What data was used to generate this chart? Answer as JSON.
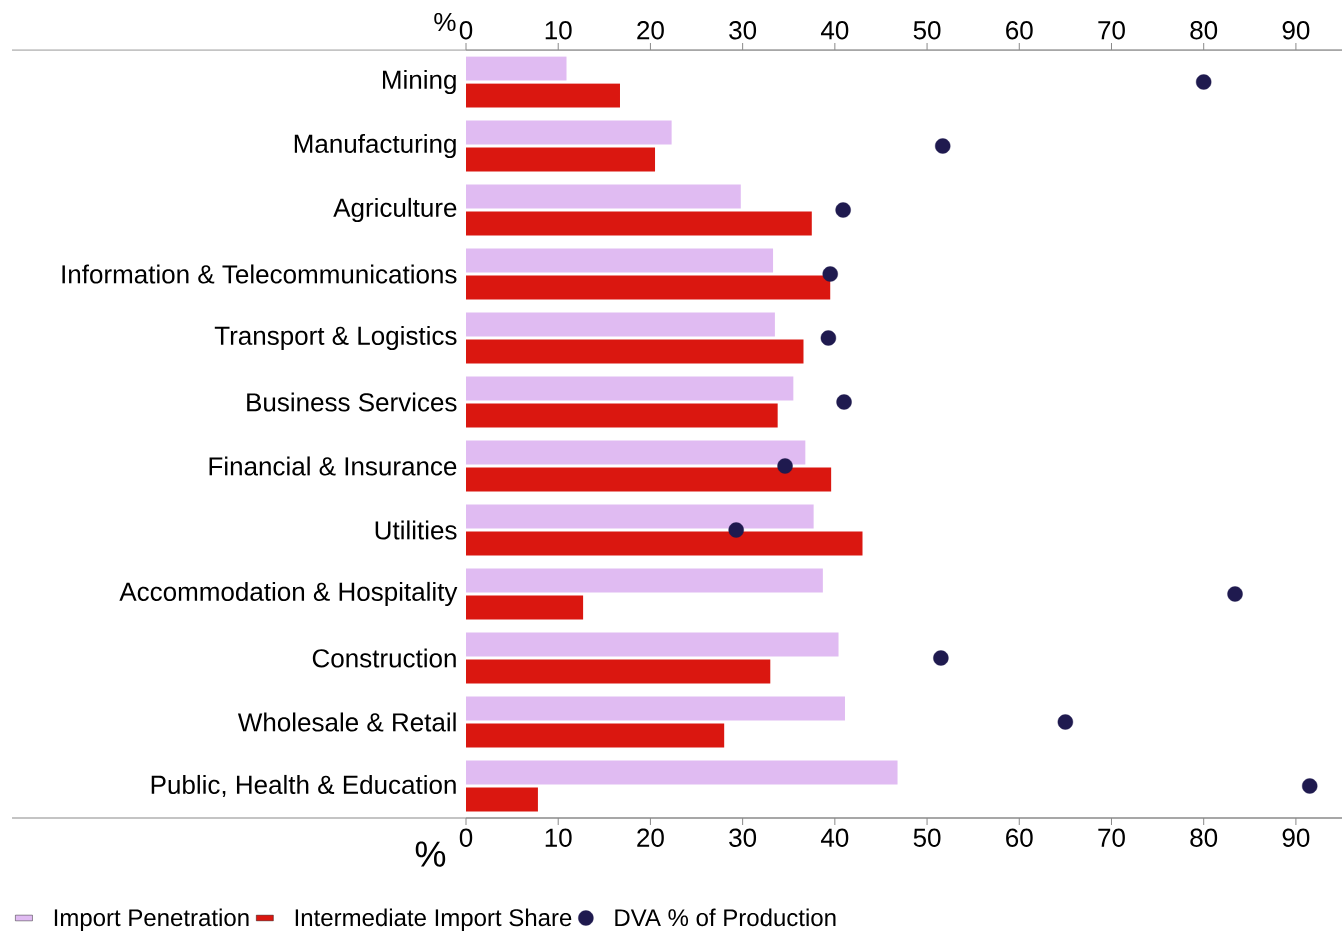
{
  "chart_data": {
    "type": "bar",
    "orientation": "horizontal",
    "categories": [
      "Mining",
      "Manufacturing",
      "Agriculture",
      "Information & Telecommunications",
      "Transport & Logistics",
      "Business Services",
      "Financial & Insurance",
      "Utilities",
      "Accommodation & Hospitality",
      "Construction",
      "Wholesale & Retail",
      "Public, Health & Education"
    ],
    "series": [
      {
        "name": "Import Penetration",
        "color": "#e0bbf2",
        "values": [
          10.9,
          22.3,
          29.8,
          33.3,
          33.5,
          35.5,
          36.8,
          37.7,
          38.7,
          40.4,
          41.1,
          46.8
        ]
      },
      {
        "name": "Intermediate Import Share",
        "color": "#da1710",
        "values": [
          16.7,
          20.5,
          37.5,
          39.5,
          36.6,
          33.8,
          39.6,
          43.0,
          12.7,
          33.0,
          28.0,
          7.8
        ]
      },
      {
        "name": "DVA % of Production",
        "type": "scatter",
        "color": "#1f1a4f",
        "values": [
          80.0,
          51.7,
          40.9,
          39.5,
          39.3,
          41.0,
          34.6,
          29.3,
          83.4,
          51.5,
          65.0,
          91.5
        ]
      }
    ],
    "xlim": [
      0,
      95
    ],
    "xticks": [
      0,
      10,
      20,
      30,
      40,
      50,
      60,
      70,
      80,
      90
    ],
    "x2lim": [
      0,
      95
    ],
    "x2ticks": [
      0,
      10,
      20,
      30,
      40,
      50,
      60,
      70,
      80,
      90
    ],
    "xlabel": "%",
    "x2label": "%",
    "legend": "bottom"
  }
}
